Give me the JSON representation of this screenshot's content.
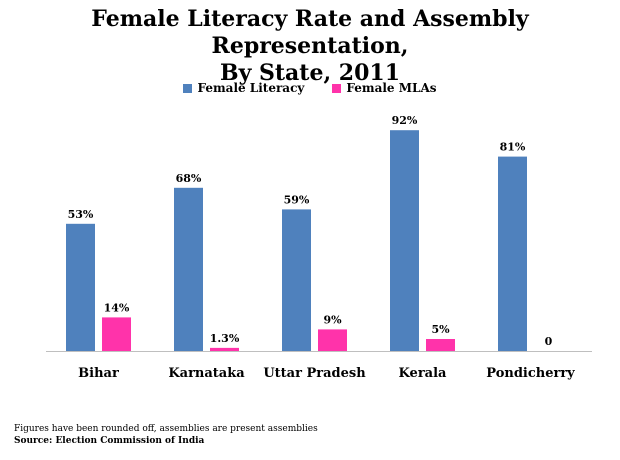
{
  "chart_data": {
    "type": "bar",
    "title_line1": "Female Literacy Rate and Assembly Representation,",
    "title_line2": "By State,  2011",
    "categories": [
      "Bihar",
      "Karnataka",
      "Uttar Pradesh",
      "Kerala",
      "Pondicherry"
    ],
    "series": [
      {
        "name": "Female Literacy",
        "color": "#4F81BD",
        "values": [
          53,
          68,
          59,
          92,
          81
        ],
        "labels": [
          "53%",
          "68%",
          "59%",
          "92%",
          "81%"
        ]
      },
      {
        "name": "Female MLAs",
        "color": "#FF33AA",
        "values": [
          14,
          1.3,
          9,
          5,
          0
        ],
        "labels": [
          "14%",
          "1.3%",
          "9%",
          "5%",
          "0"
        ]
      }
    ],
    "ylim": [
      0,
      100
    ],
    "grid": false,
    "legend_position": "top"
  },
  "footnote": "Figures have been rounded off, assemblies are present assemblies",
  "source": "Source: Election Commission of India"
}
